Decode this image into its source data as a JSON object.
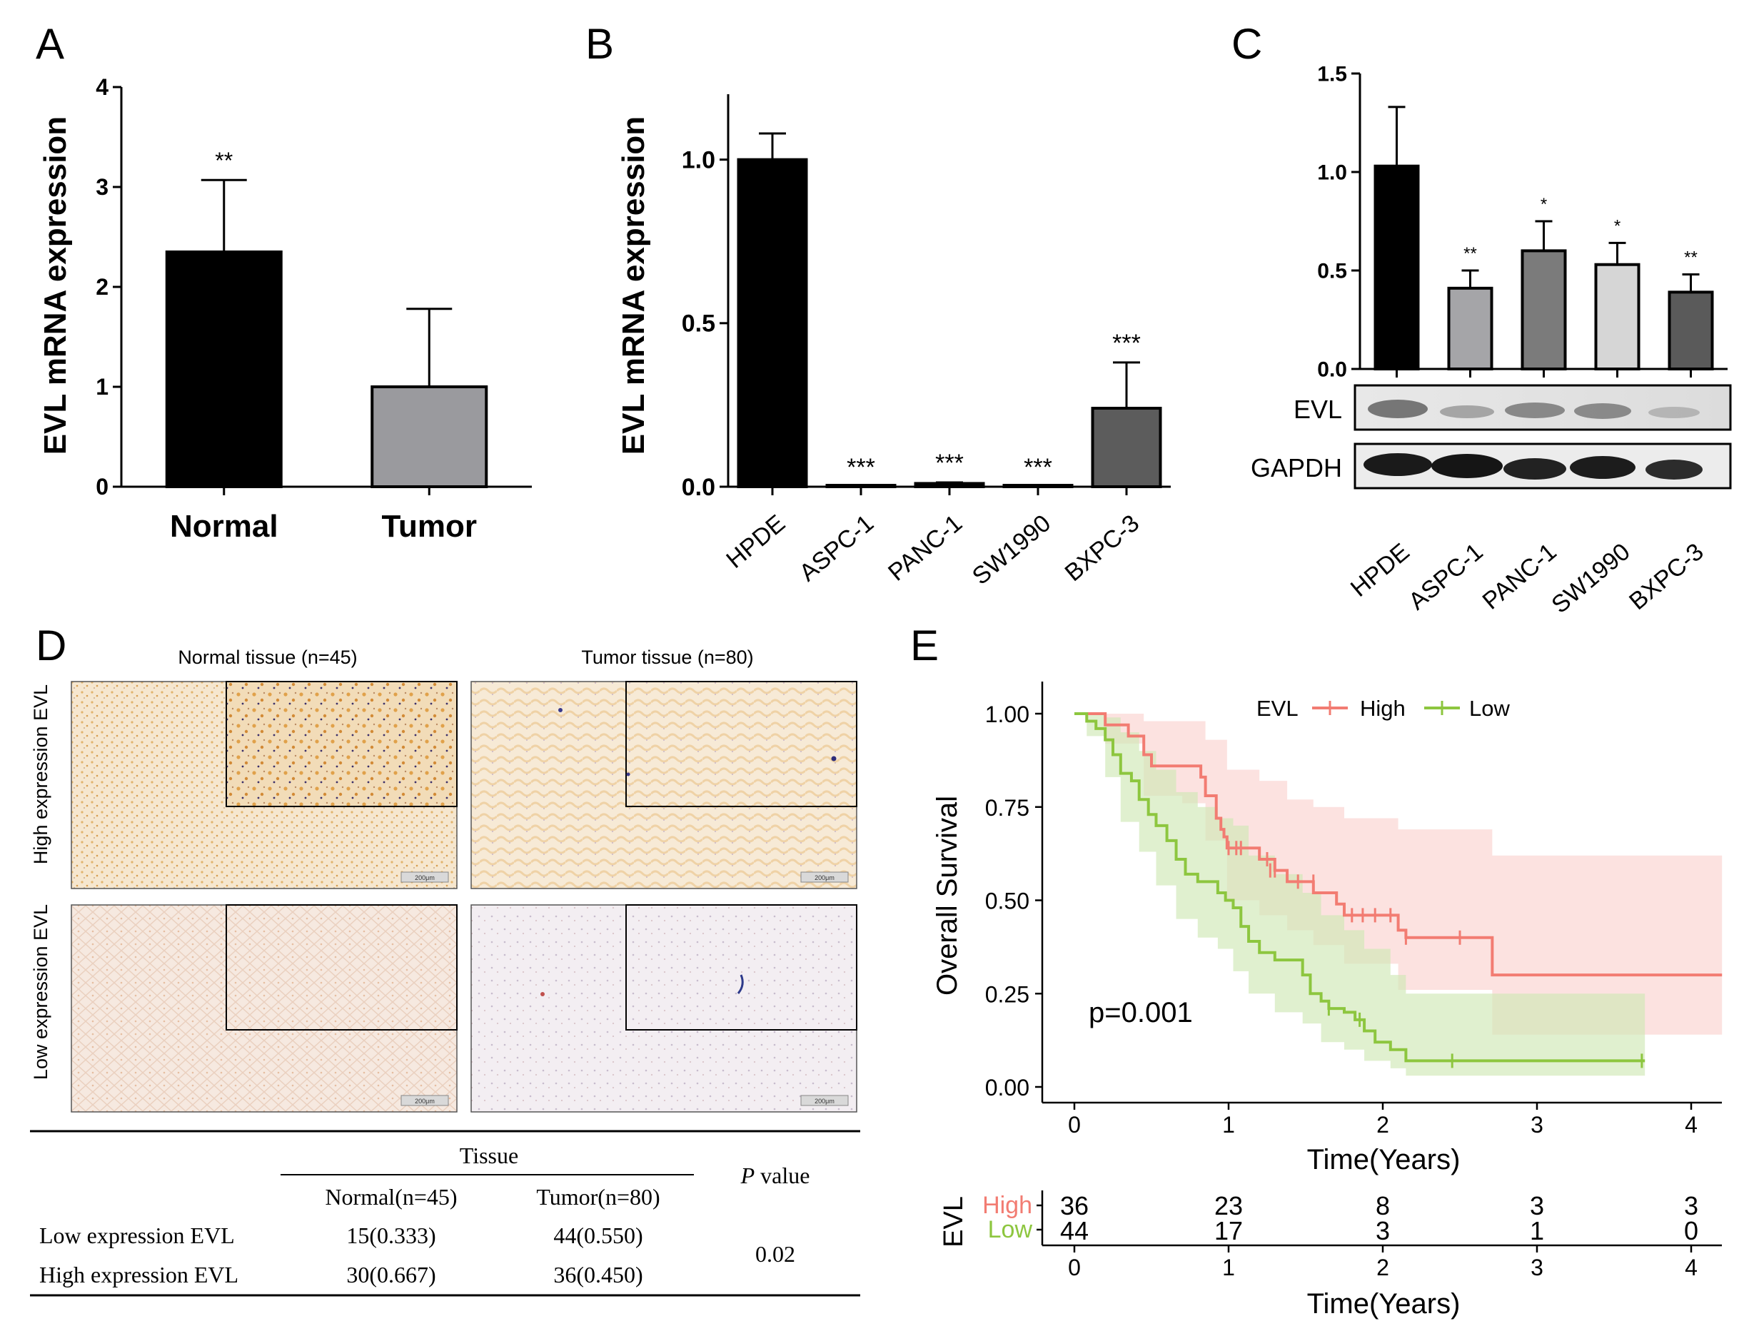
{
  "panels": {
    "A": {
      "label": "A"
    },
    "B": {
      "label": "B"
    },
    "C": {
      "label": "C"
    },
    "D": {
      "label": "D"
    },
    "E": {
      "label": "E"
    }
  },
  "chart_data": [
    {
      "id": "A",
      "type": "bar",
      "categories": [
        "Normal",
        "Tumor"
      ],
      "values": [
        2.35,
        1.0
      ],
      "errors": [
        0.72,
        0.78
      ],
      "significance": [
        "**",
        ""
      ],
      "colors": [
        "#000000",
        "#9a9a9e"
      ],
      "ylabel": "EVL mRNA expression",
      "ylim": [
        0,
        4
      ],
      "yticks": [
        "0",
        "1",
        "2",
        "3",
        "4"
      ]
    },
    {
      "id": "B",
      "type": "bar",
      "categories": [
        "HPDE",
        "ASPC-1",
        "PANC-1",
        "SW1990",
        "BXPC-3"
      ],
      "values": [
        1.0,
        0.0,
        0.01,
        0.0,
        0.24
      ],
      "errors": [
        0.08,
        0.0,
        0.003,
        0.0,
        0.14
      ],
      "significance": [
        "",
        "***",
        "***",
        "***",
        "***"
      ],
      "colors": [
        "#000000",
        "#000000",
        "#000000",
        "#000000",
        "#5c5c5c"
      ],
      "ylabel": "EVL mRNA expression",
      "ylim": [
        0,
        1.2
      ],
      "yticks": [
        "0.0",
        "0.5",
        "1.0"
      ]
    },
    {
      "id": "C",
      "type": "bar",
      "categories": [
        "HPDE",
        "ASPC-1",
        "PANC-1",
        "SW1990",
        "BXPC-3"
      ],
      "values": [
        1.03,
        0.41,
        0.6,
        0.53,
        0.39
      ],
      "errors": [
        0.3,
        0.09,
        0.15,
        0.11,
        0.09
      ],
      "significance": [
        "",
        "**",
        "*",
        "*",
        "**"
      ],
      "colors": [
        "#000000",
        "#a5a5a8",
        "#7b7b7b",
        "#d6d6d6",
        "#5a5a5a"
      ],
      "ylim": [
        0,
        1.5
      ],
      "yticks": [
        "0.0",
        "0.5",
        "1.0",
        "1.5"
      ],
      "blots": [
        "EVL",
        "GAPDH"
      ]
    },
    {
      "id": "E",
      "type": "line",
      "ylabel": "Overall Survival",
      "xlabel": "Time(Years)",
      "xlim": [
        0,
        4.2
      ],
      "ylim": [
        0,
        1
      ],
      "xticks": [
        "0",
        "1",
        "2",
        "3",
        "4"
      ],
      "yticks": [
        "0.00",
        "0.25",
        "0.50",
        "0.75",
        "1.00"
      ],
      "legend_title": "EVL",
      "pvalue": "p=0.001",
      "series": [
        {
          "name": "High",
          "color": "#f27c72",
          "fill": "#fbd3cf",
          "steps": [
            [
              0,
              1.0
            ],
            [
              0.2,
              0.97
            ],
            [
              0.35,
              0.94
            ],
            [
              0.45,
              0.89
            ],
            [
              0.5,
              0.86
            ],
            [
              0.7,
              0.86
            ],
            [
              0.82,
              0.83
            ],
            [
              0.85,
              0.78
            ],
            [
              0.92,
              0.72
            ],
            [
              0.95,
              0.69
            ],
            [
              0.97,
              0.67
            ],
            [
              0.99,
              0.64
            ],
            [
              1.1,
              0.64
            ],
            [
              1.2,
              0.61
            ],
            [
              1.3,
              0.58
            ],
            [
              1.38,
              0.55
            ],
            [
              1.5,
              0.55
            ],
            [
              1.55,
              0.52
            ],
            [
              1.7,
              0.49
            ],
            [
              1.75,
              0.46
            ],
            [
              2.05,
              0.46
            ],
            [
              2.1,
              0.42
            ],
            [
              2.15,
              0.4
            ],
            [
              2.7,
              0.4
            ],
            [
              2.71,
              0.3
            ],
            [
              4.2,
              0.3
            ]
          ],
          "upper": [
            [
              0,
              1.0
            ],
            [
              0.2,
              1.0
            ],
            [
              0.45,
              0.98
            ],
            [
              0.7,
              0.98
            ],
            [
              0.85,
              0.93
            ],
            [
              0.99,
              0.85
            ],
            [
              1.2,
              0.82
            ],
            [
              1.38,
              0.77
            ],
            [
              1.55,
              0.75
            ],
            [
              1.75,
              0.72
            ],
            [
              2.1,
              0.69
            ],
            [
              2.7,
              0.69
            ],
            [
              2.71,
              0.62
            ],
            [
              4.2,
              0.62
            ]
          ],
          "lower": [
            [
              0,
              1.0
            ],
            [
              0.2,
              0.92
            ],
            [
              0.45,
              0.78
            ],
            [
              0.7,
              0.76
            ],
            [
              0.85,
              0.66
            ],
            [
              0.99,
              0.5
            ],
            [
              1.2,
              0.46
            ],
            [
              1.38,
              0.42
            ],
            [
              1.55,
              0.38
            ],
            [
              1.75,
              0.33
            ],
            [
              2.1,
              0.26
            ],
            [
              2.7,
              0.26
            ],
            [
              2.71,
              0.14
            ],
            [
              4.2,
              0.14
            ]
          ],
          "censors": [
            [
              1.0,
              0.64
            ],
            [
              1.05,
              0.64
            ],
            [
              1.08,
              0.64
            ],
            [
              1.25,
              0.61
            ],
            [
              1.27,
              0.58
            ],
            [
              1.3,
              0.58
            ],
            [
              1.45,
              0.55
            ],
            [
              1.55,
              0.55
            ],
            [
              1.8,
              0.46
            ],
            [
              1.87,
              0.46
            ],
            [
              1.95,
              0.46
            ],
            [
              2.05,
              0.46
            ],
            [
              2.15,
              0.4
            ],
            [
              2.5,
              0.4
            ]
          ],
          "at_risk": [
            "36",
            "23",
            "8",
            "3",
            "3"
          ]
        },
        {
          "name": "Low",
          "color": "#8dc63f",
          "fill": "#cfe8b5",
          "steps": [
            [
              0,
              1.0
            ],
            [
              0.08,
              0.98
            ],
            [
              0.14,
              0.96
            ],
            [
              0.2,
              0.93
            ],
            [
              0.25,
              0.89
            ],
            [
              0.3,
              0.84
            ],
            [
              0.37,
              0.82
            ],
            [
              0.42,
              0.77
            ],
            [
              0.48,
              0.73
            ],
            [
              0.53,
              0.7
            ],
            [
              0.6,
              0.66
            ],
            [
              0.66,
              0.61
            ],
            [
              0.72,
              0.57
            ],
            [
              0.8,
              0.55
            ],
            [
              0.88,
              0.55
            ],
            [
              0.93,
              0.52
            ],
            [
              0.98,
              0.5
            ],
            [
              1.03,
              0.48
            ],
            [
              1.08,
              0.43
            ],
            [
              1.13,
              0.39
            ],
            [
              1.2,
              0.36
            ],
            [
              1.3,
              0.34
            ],
            [
              1.43,
              0.34
            ],
            [
              1.48,
              0.3
            ],
            [
              1.53,
              0.25
            ],
            [
              1.6,
              0.23
            ],
            [
              1.65,
              0.21
            ],
            [
              1.75,
              0.2
            ],
            [
              1.82,
              0.18
            ],
            [
              1.88,
              0.15
            ],
            [
              1.95,
              0.12
            ],
            [
              2.05,
              0.1
            ],
            [
              2.15,
              0.07
            ],
            [
              3.7,
              0.07
            ]
          ],
          "upper": [
            [
              0,
              1.0
            ],
            [
              0.08,
              1.0
            ],
            [
              0.2,
              0.99
            ],
            [
              0.3,
              0.95
            ],
            [
              0.42,
              0.9
            ],
            [
              0.53,
              0.85
            ],
            [
              0.66,
              0.79
            ],
            [
              0.8,
              0.75
            ],
            [
              0.93,
              0.72
            ],
            [
              1.03,
              0.7
            ],
            [
              1.13,
              0.62
            ],
            [
              1.3,
              0.57
            ],
            [
              1.48,
              0.52
            ],
            [
              1.6,
              0.46
            ],
            [
              1.75,
              0.42
            ],
            [
              1.88,
              0.37
            ],
            [
              2.05,
              0.3
            ],
            [
              2.15,
              0.25
            ],
            [
              3.7,
              0.25
            ]
          ],
          "lower": [
            [
              0,
              1.0
            ],
            [
              0.08,
              0.94
            ],
            [
              0.2,
              0.83
            ],
            [
              0.3,
              0.71
            ],
            [
              0.42,
              0.63
            ],
            [
              0.53,
              0.54
            ],
            [
              0.66,
              0.45
            ],
            [
              0.8,
              0.4
            ],
            [
              0.93,
              0.37
            ],
            [
              1.03,
              0.31
            ],
            [
              1.13,
              0.25
            ],
            [
              1.3,
              0.2
            ],
            [
              1.48,
              0.17
            ],
            [
              1.6,
              0.12
            ],
            [
              1.75,
              0.1
            ],
            [
              1.88,
              0.07
            ],
            [
              2.05,
              0.05
            ],
            [
              2.15,
              0.03
            ],
            [
              3.7,
              0.03
            ]
          ],
          "censors": [
            [
              1.65,
              0.21
            ],
            [
              1.85,
              0.18
            ],
            [
              2.45,
              0.07
            ],
            [
              3.68,
              0.07
            ]
          ],
          "at_risk": [
            "44",
            "17",
            "3",
            "1",
            "0"
          ]
        }
      ]
    }
  ],
  "panelD": {
    "col_titles": [
      "Normal tissue (n=45)",
      "Tumor tissue (n=80)"
    ],
    "row_titles": [
      "High expression EVL",
      "Low expression EVL"
    ],
    "scale_label": "200μm",
    "table": {
      "header_group": "Tissue",
      "header_cols": [
        "Normal(n=45)",
        "Tumor(n=80)"
      ],
      "pvalue_header_p": "P",
      "pvalue_header_rest": " value",
      "rows": [
        {
          "label": "Low expression EVL",
          "normal": "15(0.333)",
          "tumor": "44(0.550)"
        },
        {
          "label": "High expression EVL",
          "normal": "30(0.667)",
          "tumor": "36(0.450)"
        }
      ],
      "pvalue": "0.02"
    }
  },
  "panelE_risk": {
    "title": "EVL",
    "xticks": [
      "0",
      "1",
      "2",
      "3",
      "4"
    ],
    "xlabel": "Time(Years)"
  }
}
